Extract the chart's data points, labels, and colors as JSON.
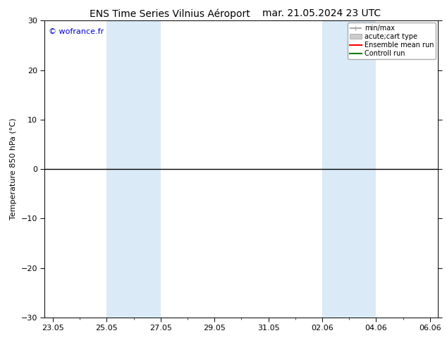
{
  "title_left": "ENS Time Series Vilnius Aéroport",
  "title_right": "mar. 21.05.2024 23 UTC",
  "ylabel": "Temperature 850 hPa (°C)",
  "watermark": "© wofrance.fr",
  "watermark_color": "#0000cc",
  "ylim": [
    -30,
    30
  ],
  "yticks": [
    -30,
    -20,
    -10,
    0,
    10,
    20,
    30
  ],
  "x_tick_labels": [
    "23.05",
    "25.05",
    "27.05",
    "29.05",
    "31.05",
    "02.06",
    "04.06",
    "06.06"
  ],
  "x_tick_positions": [
    0,
    2,
    4,
    6,
    8,
    10,
    12,
    14
  ],
  "hline_y": 0,
  "background_color": "#ffffff",
  "plot_bg_color": "#ffffff",
  "shaded_regions": [
    {
      "xstart": 2.0,
      "xend": 4.0,
      "color": "#daeaf7"
    },
    {
      "xstart": 10.0,
      "xend": 12.0,
      "color": "#daeaf7"
    }
  ],
  "legend_items": [
    {
      "label": "min/max",
      "color": "#aaaaaa",
      "lw": 1.5
    },
    {
      "label": "acute;cart type",
      "color": "#cccccc",
      "lw": 8
    },
    {
      "label": "Ensemble mean run",
      "color": "#ff0000",
      "lw": 1.5
    },
    {
      "label": "Controll run",
      "color": "#008000",
      "lw": 1.5
    }
  ],
  "hline_color": "#000000",
  "hline_lw": 1.0,
  "tick_color": "#000000",
  "border_color": "#000000",
  "title_fontsize": 10,
  "ylabel_fontsize": 8,
  "tick_fontsize": 8,
  "legend_fontsize": 7,
  "figsize": [
    6.34,
    4.9
  ],
  "dpi": 100
}
